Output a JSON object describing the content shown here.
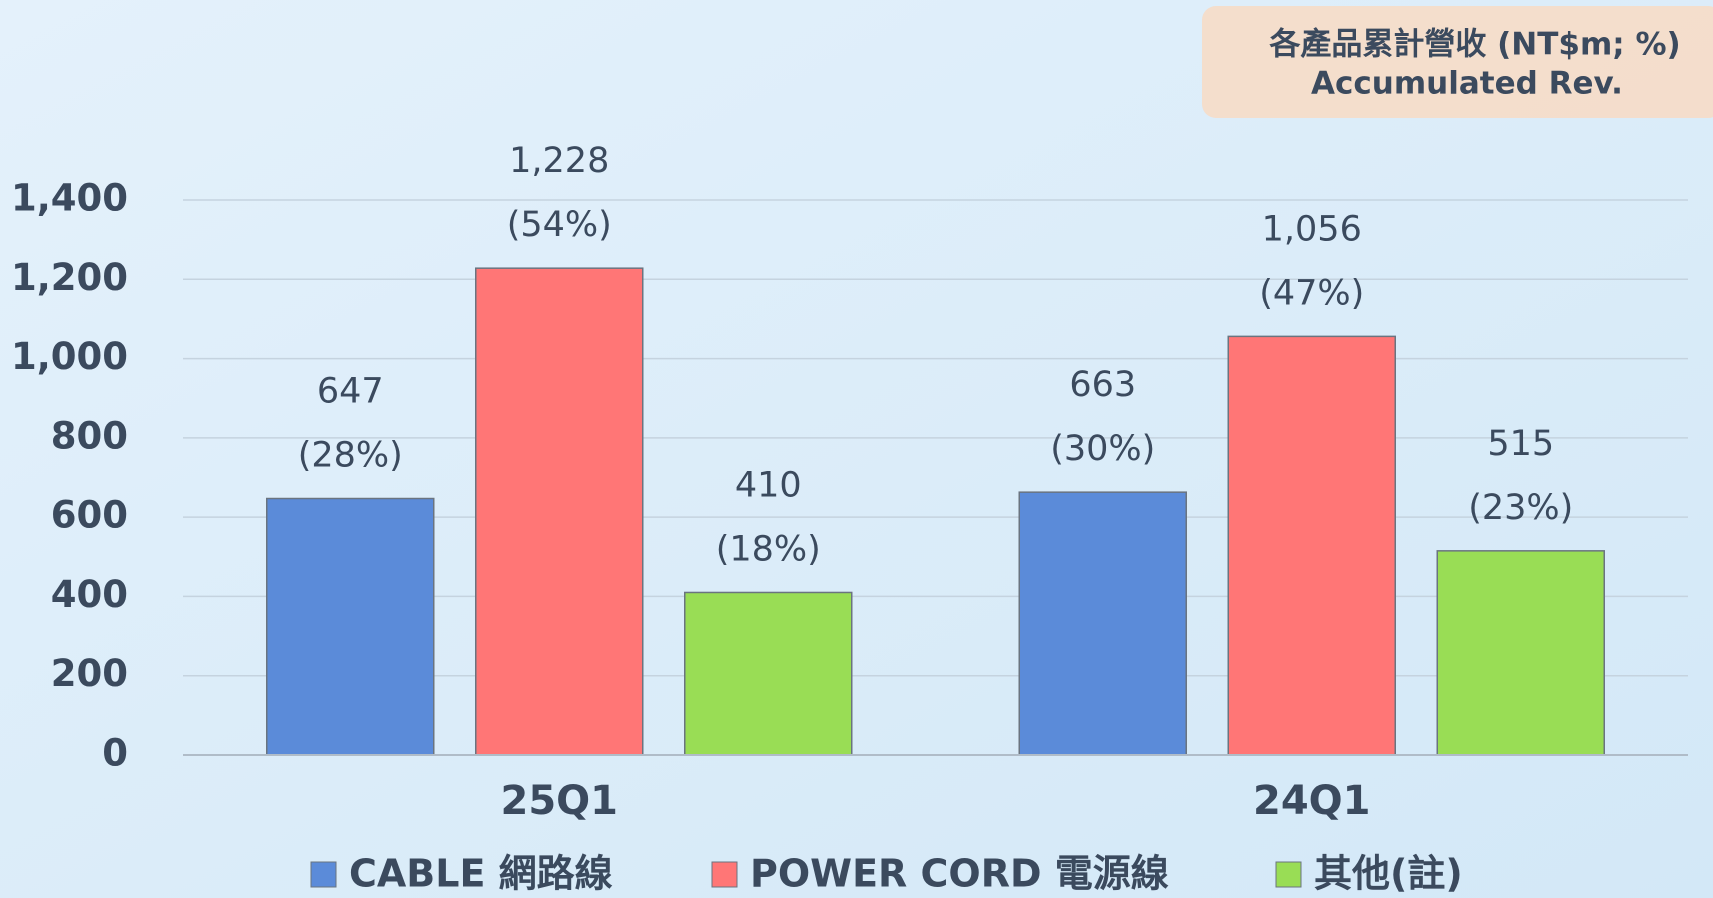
{
  "chart_data": {
    "type": "bar",
    "title": "各產品累計營收 (NT$m; %)",
    "subtitle": "Accumulated Rev.",
    "categories": [
      "25Q1",
      "24Q1"
    ],
    "series": [
      {
        "name": "CABLE 網路線",
        "color": "#5b8bd9",
        "values": [
          647,
          663
        ],
        "shares": [
          28,
          30
        ],
        "share_labels": [
          "(28%)",
          "(30%)"
        ]
      },
      {
        "name": "POWER CORD 電源線",
        "color": "#ff7676",
        "values": [
          1228,
          1056
        ],
        "shares": [
          54,
          47
        ],
        "share_labels": [
          "(54%)",
          "(47%)"
        ]
      },
      {
        "name": "其他(註)",
        "color": "#99dd55",
        "values": [
          410,
          515
        ],
        "shares": [
          18,
          23
        ],
        "share_labels": [
          "(18%)",
          "(23%)"
        ]
      }
    ],
    "value_labels": [
      [
        "647",
        "663"
      ],
      [
        "1,228",
        "1,056"
      ],
      [
        "410",
        "515"
      ]
    ],
    "ylim": [
      0,
      1400
    ],
    "yticks": [
      0,
      200,
      400,
      600,
      800,
      {
        "value": 1000,
        "label": "1,000"
      },
      {
        "value": 1200,
        "label": "1,200"
      },
      {
        "value": 1400,
        "label": "1,400"
      }
    ],
    "grid": true,
    "legend": "bottom"
  }
}
